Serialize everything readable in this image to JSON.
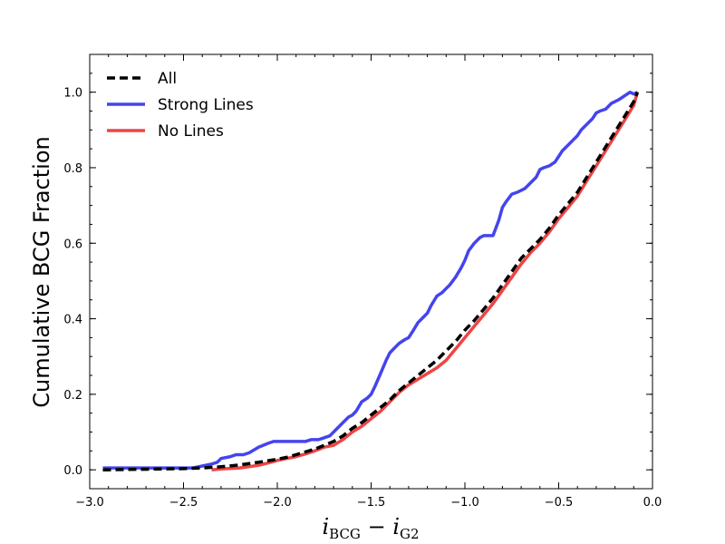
{
  "chart_data": {
    "type": "line",
    "title": "",
    "ylabel": "Cumulative BCG Fraction",
    "xlabel": {
      "var": "i",
      "sub1": "BCG",
      "sub2": "G2",
      "op": "−"
    },
    "xlim": [
      -3.0,
      0.0
    ],
    "ylim": [
      -0.05,
      1.1
    ],
    "xticks": [
      -3.0,
      -2.5,
      -2.0,
      -1.5,
      -1.0,
      -0.5,
      0.0
    ],
    "xtick_labels": [
      "−3.0",
      "−2.5",
      "−2.0",
      "−1.5",
      "−1.0",
      "−0.5",
      "0.0"
    ],
    "yticks": [
      0.0,
      0.2,
      0.4,
      0.6,
      0.8,
      1.0
    ],
    "ytick_labels": [
      "0.0",
      "0.2",
      "0.4",
      "0.6",
      "0.8",
      "1.0"
    ],
    "grid": false,
    "legend_position": "top-left",
    "series": [
      {
        "name": "All",
        "color": "#000000",
        "dash": true,
        "x": [
          -2.93,
          -2.5,
          -2.4,
          -2.3,
          -2.2,
          -2.1,
          -2.0,
          -1.95,
          -1.9,
          -1.8,
          -1.75,
          -1.7,
          -1.65,
          -1.6,
          -1.55,
          -1.5,
          -1.45,
          -1.4,
          -1.35,
          -1.3,
          -1.25,
          -1.2,
          -1.15,
          -1.1,
          -1.05,
          -1.0,
          -0.95,
          -0.9,
          -0.85,
          -0.8,
          -0.75,
          -0.7,
          -0.65,
          -0.6,
          -0.55,
          -0.5,
          -0.45,
          -0.4,
          -0.35,
          -0.3,
          -0.25,
          -0.2,
          -0.15,
          -0.1,
          -0.08
        ],
        "y": [
          0.0,
          0.003,
          0.005,
          0.008,
          0.013,
          0.02,
          0.028,
          0.033,
          0.04,
          0.055,
          0.065,
          0.075,
          0.09,
          0.11,
          0.125,
          0.145,
          0.165,
          0.185,
          0.21,
          0.23,
          0.25,
          0.27,
          0.29,
          0.315,
          0.34,
          0.37,
          0.395,
          0.425,
          0.455,
          0.49,
          0.525,
          0.56,
          0.585,
          0.61,
          0.64,
          0.675,
          0.705,
          0.735,
          0.775,
          0.815,
          0.855,
          0.895,
          0.935,
          0.975,
          1.0
        ]
      },
      {
        "name": "Strong Lines",
        "color": "#4444ee",
        "dash": false,
        "x": [
          -2.93,
          -2.45,
          -2.4,
          -2.35,
          -2.32,
          -2.3,
          -2.25,
          -2.22,
          -2.18,
          -2.15,
          -2.1,
          -2.05,
          -2.02,
          -2.0,
          -1.95,
          -1.9,
          -1.85,
          -1.82,
          -1.78,
          -1.75,
          -1.72,
          -1.7,
          -1.68,
          -1.65,
          -1.62,
          -1.6,
          -1.58,
          -1.55,
          -1.52,
          -1.5,
          -1.48,
          -1.45,
          -1.42,
          -1.4,
          -1.38,
          -1.35,
          -1.32,
          -1.3,
          -1.28,
          -1.25,
          -1.22,
          -1.2,
          -1.18,
          -1.15,
          -1.12,
          -1.1,
          -1.08,
          -1.05,
          -1.02,
          -1.0,
          -0.98,
          -0.95,
          -0.92,
          -0.9,
          -0.88,
          -0.85,
          -0.82,
          -0.8,
          -0.78,
          -0.75,
          -0.72,
          -0.7,
          -0.68,
          -0.65,
          -0.62,
          -0.6,
          -0.58,
          -0.55,
          -0.52,
          -0.5,
          -0.48,
          -0.45,
          -0.42,
          -0.4,
          -0.38,
          -0.35,
          -0.32,
          -0.3,
          -0.28,
          -0.25,
          -0.22,
          -0.2,
          -0.18,
          -0.15,
          -0.12,
          -0.1,
          -0.08
        ],
        "y": [
          0.005,
          0.005,
          0.01,
          0.015,
          0.02,
          0.03,
          0.035,
          0.04,
          0.04,
          0.045,
          0.06,
          0.07,
          0.075,
          0.075,
          0.075,
          0.075,
          0.075,
          0.08,
          0.08,
          0.085,
          0.09,
          0.1,
          0.11,
          0.125,
          0.14,
          0.145,
          0.155,
          0.18,
          0.19,
          0.2,
          0.22,
          0.255,
          0.29,
          0.31,
          0.32,
          0.335,
          0.345,
          0.35,
          0.365,
          0.39,
          0.405,
          0.415,
          0.435,
          0.46,
          0.47,
          0.48,
          0.49,
          0.51,
          0.535,
          0.555,
          0.58,
          0.6,
          0.615,
          0.62,
          0.62,
          0.62,
          0.66,
          0.695,
          0.71,
          0.73,
          0.735,
          0.74,
          0.745,
          0.76,
          0.775,
          0.795,
          0.8,
          0.805,
          0.815,
          0.83,
          0.845,
          0.86,
          0.875,
          0.885,
          0.9,
          0.915,
          0.93,
          0.945,
          0.95,
          0.955,
          0.97,
          0.975,
          0.98,
          0.99,
          1.0,
          0.995,
          1.0
        ]
      },
      {
        "name": "No Lines",
        "color": "#ee4444",
        "dash": false,
        "x": [
          -2.35,
          -2.3,
          -2.2,
          -2.1,
          -2.05,
          -2.0,
          -1.95,
          -1.9,
          -1.85,
          -1.8,
          -1.75,
          -1.7,
          -1.65,
          -1.6,
          -1.55,
          -1.5,
          -1.45,
          -1.4,
          -1.35,
          -1.3,
          -1.25,
          -1.2,
          -1.15,
          -1.1,
          -1.05,
          -1.0,
          -0.95,
          -0.9,
          -0.85,
          -0.8,
          -0.75,
          -0.7,
          -0.65,
          -0.6,
          -0.55,
          -0.5,
          -0.45,
          -0.4,
          -0.35,
          -0.3,
          -0.25,
          -0.2,
          -0.15,
          -0.1,
          -0.08
        ],
        "y": [
          0.0,
          0.002,
          0.005,
          0.012,
          0.018,
          0.025,
          0.03,
          0.035,
          0.042,
          0.05,
          0.06,
          0.065,
          0.08,
          0.1,
          0.115,
          0.135,
          0.155,
          0.18,
          0.205,
          0.225,
          0.24,
          0.255,
          0.27,
          0.29,
          0.32,
          0.35,
          0.38,
          0.41,
          0.44,
          0.475,
          0.51,
          0.545,
          0.575,
          0.6,
          0.63,
          0.665,
          0.695,
          0.725,
          0.765,
          0.805,
          0.845,
          0.885,
          0.925,
          0.965,
          1.0
        ]
      }
    ]
  }
}
